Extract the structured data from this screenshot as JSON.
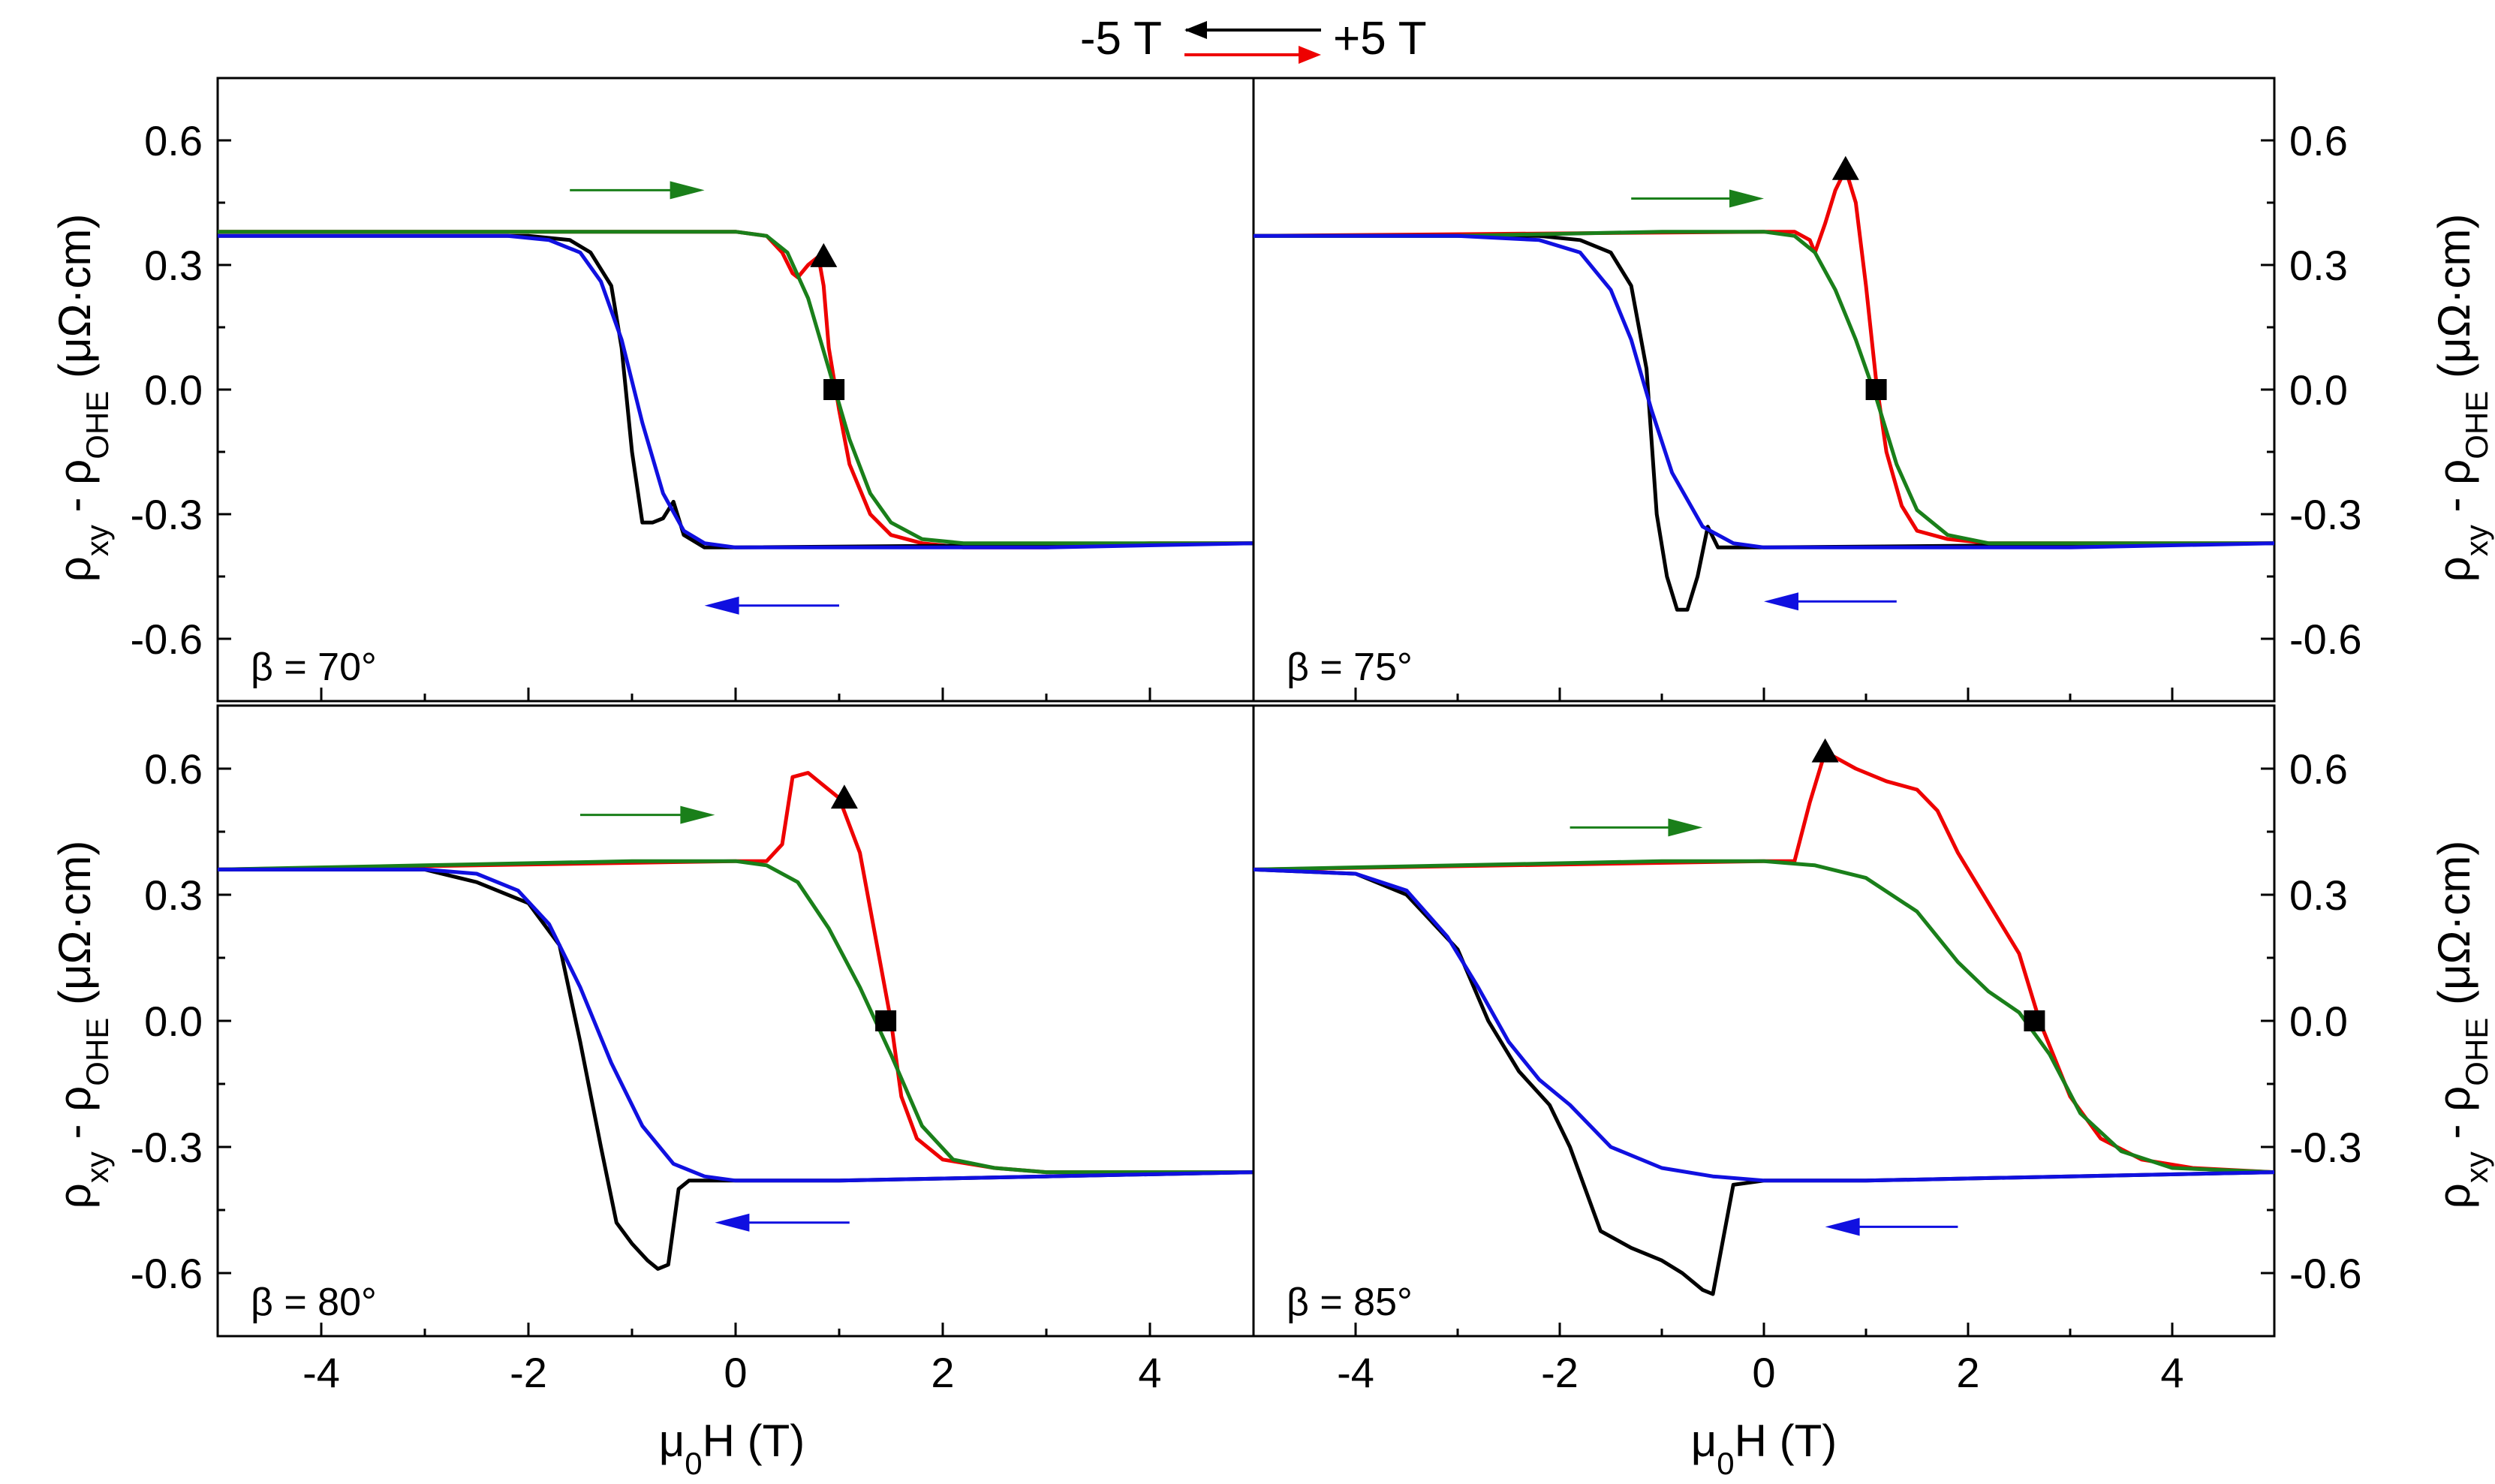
{
  "legend": {
    "left_label": "-5 T",
    "right_label": "+5 T",
    "down_sweep_color": "#000000",
    "up_sweep_color": "#ee0000"
  },
  "colors": {
    "up_sweep": "#ee0000",
    "down_sweep": "#000000",
    "fit_up": "#1a7f1a",
    "fit_down": "#1010e0",
    "arrow_up": "#1a7f1a",
    "arrow_down": "#1010e0"
  },
  "chart_data": [
    {
      "type": "line",
      "panel": "top-left",
      "beta_label": "β = 70°",
      "xlabel": "μ0H (T)",
      "ylabel": "ρxy - ρOHE (μΩ·cm)",
      "xlim": [
        -5,
        5
      ],
      "ylim": [
        -0.75,
        0.75
      ],
      "x_ticks": [
        -4,
        -2,
        0,
        2,
        4
      ],
      "y_ticks": [
        -0.6,
        -0.3,
        0.0,
        0.3,
        0.6
      ],
      "series": [
        {
          "name": "up sweep (-5 T → +5 T)",
          "color": "#ee0000",
          "x": [
            -5,
            0,
            0.3,
            0.45,
            0.55,
            0.6,
            0.7,
            0.8,
            0.85,
            0.9,
            1.0,
            1.1,
            1.3,
            1.5,
            1.8,
            2.2,
            3,
            4,
            5
          ],
          "y": [
            0.38,
            0.38,
            0.37,
            0.33,
            0.28,
            0.27,
            0.3,
            0.32,
            0.25,
            0.1,
            -0.05,
            -0.18,
            -0.3,
            -0.35,
            -0.37,
            -0.38,
            -0.38,
            -0.37,
            -0.37
          ]
        },
        {
          "name": "down sweep (+5 T → -5 T)",
          "color": "#000000",
          "x": [
            5,
            0,
            -0.3,
            -0.5,
            -0.6,
            -0.7,
            -0.8,
            -0.9,
            -1.0,
            -1.1,
            -1.2,
            -1.4,
            -1.6,
            -2,
            -3,
            -4,
            -5
          ],
          "y": [
            -0.37,
            -0.38,
            -0.38,
            -0.35,
            -0.27,
            -0.31,
            -0.32,
            -0.32,
            -0.15,
            0.1,
            0.25,
            0.33,
            0.36,
            0.37,
            0.37,
            0.37,
            0.37
          ]
        },
        {
          "name": "fit up",
          "color": "#1a7f1a",
          "x": [
            -5,
            -3,
            -1,
            0,
            0.3,
            0.5,
            0.7,
            0.9,
            1.1,
            1.3,
            1.5,
            1.8,
            2.2,
            3,
            5
          ],
          "y": [
            0.38,
            0.38,
            0.38,
            0.38,
            0.37,
            0.33,
            0.22,
            0.05,
            -0.12,
            -0.25,
            -0.32,
            -0.36,
            -0.37,
            -0.37,
            -0.37
          ]
        },
        {
          "name": "fit down",
          "color": "#1010e0",
          "x": [
            5,
            3,
            1,
            0,
            -0.3,
            -0.5,
            -0.7,
            -0.9,
            -1.1,
            -1.3,
            -1.5,
            -1.8,
            -2.2,
            -3,
            -5
          ],
          "y": [
            -0.37,
            -0.38,
            -0.38,
            -0.38,
            -0.37,
            -0.34,
            -0.25,
            -0.08,
            0.12,
            0.26,
            0.33,
            0.36,
            0.37,
            0.37,
            0.37
          ]
        }
      ],
      "markers": [
        {
          "shape": "triangle",
          "x": 0.85,
          "y": 0.32
        },
        {
          "shape": "square",
          "x": 0.95,
          "y": 0.0
        }
      ],
      "arrows": [
        {
          "direction": "right",
          "color": "#1a7f1a",
          "x_from": -1.6,
          "x_to": -0.3,
          "y": 0.48
        },
        {
          "direction": "left",
          "color": "#1010e0",
          "x_from": 1.0,
          "x_to": -0.3,
          "y": -0.52
        }
      ]
    },
    {
      "type": "line",
      "panel": "top-right",
      "beta_label": "β = 75°",
      "xlabel": "μ0H (T)",
      "ylabel": "ρxy - ρOHE (μΩ·cm)",
      "xlim": [
        -5,
        5
      ],
      "ylim": [
        -0.75,
        0.75
      ],
      "x_ticks": [
        -4,
        -2,
        0,
        2,
        4
      ],
      "y_ticks": [
        -0.6,
        -0.3,
        0.0,
        0.3,
        0.6
      ],
      "series": [
        {
          "name": "up sweep (-5 T → +5 T)",
          "color": "#ee0000",
          "x": [
            -5,
            0,
            0.3,
            0.45,
            0.5,
            0.6,
            0.7,
            0.8,
            0.9,
            1.0,
            1.1,
            1.2,
            1.35,
            1.5,
            1.8,
            2.2,
            3,
            4,
            5
          ],
          "y": [
            0.37,
            0.38,
            0.38,
            0.36,
            0.33,
            0.4,
            0.48,
            0.53,
            0.45,
            0.25,
            0.02,
            -0.15,
            -0.28,
            -0.34,
            -0.36,
            -0.37,
            -0.37,
            -0.37,
            -0.37
          ]
        },
        {
          "name": "down sweep (+5 T → -5 T)",
          "color": "#000000",
          "x": [
            5,
            0,
            -0.3,
            -0.45,
            -0.55,
            -0.65,
            -0.75,
            -0.85,
            -0.95,
            -1.05,
            -1.15,
            -1.3,
            -1.5,
            -1.8,
            -2.2,
            -3,
            -4,
            -5
          ],
          "y": [
            -0.37,
            -0.38,
            -0.38,
            -0.38,
            -0.33,
            -0.45,
            -0.53,
            -0.53,
            -0.45,
            -0.3,
            0.05,
            0.25,
            0.33,
            0.36,
            0.37,
            0.37,
            0.37,
            0.37
          ]
        },
        {
          "name": "fit up",
          "color": "#1a7f1a",
          "x": [
            -5,
            -3,
            -1,
            0,
            0.3,
            0.5,
            0.7,
            0.9,
            1.1,
            1.3,
            1.5,
            1.8,
            2.2,
            3,
            5
          ],
          "y": [
            0.37,
            0.37,
            0.38,
            0.38,
            0.37,
            0.33,
            0.24,
            0.12,
            -0.02,
            -0.18,
            -0.29,
            -0.35,
            -0.37,
            -0.37,
            -0.37
          ]
        },
        {
          "name": "fit down",
          "color": "#1010e0",
          "x": [
            5,
            3,
            1,
            0,
            -0.3,
            -0.6,
            -0.9,
            -1.1,
            -1.3,
            -1.5,
            -1.8,
            -2.2,
            -3,
            -5
          ],
          "y": [
            -0.37,
            -0.38,
            -0.38,
            -0.38,
            -0.37,
            -0.33,
            -0.2,
            -0.05,
            0.12,
            0.24,
            0.33,
            0.36,
            0.37,
            0.37
          ]
        }
      ],
      "markers": [
        {
          "shape": "triangle",
          "x": 0.8,
          "y": 0.53
        },
        {
          "shape": "square",
          "x": 1.1,
          "y": 0.0
        }
      ],
      "arrows": [
        {
          "direction": "right",
          "color": "#1a7f1a",
          "x_from": -1.3,
          "x_to": 0.0,
          "y": 0.46
        },
        {
          "direction": "left",
          "color": "#1010e0",
          "x_from": 1.3,
          "x_to": 0.0,
          "y": -0.51
        }
      ]
    },
    {
      "type": "line",
      "panel": "bottom-left",
      "beta_label": "β = 80°",
      "xlabel": "μ0H (T)",
      "ylabel": "ρxy - ρOHE (μΩ·cm)",
      "xlim": [
        -5,
        5
      ],
      "ylim": [
        -0.75,
        0.75
      ],
      "x_ticks": [
        -4,
        -2,
        0,
        2,
        4
      ],
      "y_ticks": [
        -0.6,
        -0.3,
        0.0,
        0.3,
        0.6
      ],
      "series": [
        {
          "name": "up sweep (-5 T → +5 T)",
          "color": "#ee0000",
          "x": [
            -5,
            0,
            0.3,
            0.45,
            0.55,
            0.7,
            0.85,
            1.0,
            1.2,
            1.35,
            1.5,
            1.6,
            1.75,
            2.0,
            2.5,
            3,
            4,
            5
          ],
          "y": [
            0.36,
            0.38,
            0.38,
            0.42,
            0.58,
            0.59,
            0.56,
            0.53,
            0.4,
            0.2,
            0.0,
            -0.18,
            -0.28,
            -0.33,
            -0.35,
            -0.36,
            -0.36,
            -0.36
          ]
        },
        {
          "name": "down sweep (+5 T → -5 T)",
          "color": "#000000",
          "x": [
            5,
            3,
            1,
            0,
            -0.3,
            -0.45,
            -0.55,
            -0.65,
            -0.75,
            -0.85,
            -1.0,
            -1.15,
            -1.3,
            -1.5,
            -1.7,
            -2,
            -2.5,
            -3,
            -5
          ],
          "y": [
            -0.36,
            -0.37,
            -0.38,
            -0.38,
            -0.38,
            -0.38,
            -0.4,
            -0.58,
            -0.59,
            -0.57,
            -0.53,
            -0.48,
            -0.3,
            -0.05,
            0.18,
            0.28,
            0.33,
            0.36,
            0.36
          ]
        },
        {
          "name": "fit up",
          "color": "#1a7f1a",
          "x": [
            -5,
            -3,
            -1,
            0,
            0.3,
            0.6,
            0.9,
            1.2,
            1.5,
            1.8,
            2.1,
            2.5,
            3,
            5
          ],
          "y": [
            0.36,
            0.37,
            0.38,
            0.38,
            0.37,
            0.33,
            0.22,
            0.08,
            -0.08,
            -0.25,
            -0.33,
            -0.35,
            -0.36,
            -0.36
          ]
        },
        {
          "name": "fit down",
          "color": "#1010e0",
          "x": [
            5,
            3,
            1,
            0,
            -0.3,
            -0.6,
            -0.9,
            -1.2,
            -1.5,
            -1.8,
            -2.1,
            -2.5,
            -3,
            -5
          ],
          "y": [
            -0.36,
            -0.37,
            -0.38,
            -0.38,
            -0.37,
            -0.34,
            -0.25,
            -0.1,
            0.08,
            0.23,
            0.31,
            0.35,
            0.36,
            0.36
          ]
        }
      ],
      "markers": [
        {
          "shape": "triangle",
          "x": 1.05,
          "y": 0.53
        },
        {
          "shape": "square",
          "x": 1.45,
          "y": 0.0
        }
      ],
      "arrows": [
        {
          "direction": "right",
          "color": "#1a7f1a",
          "x_from": -1.5,
          "x_to": -0.2,
          "y": 0.49
        },
        {
          "direction": "left",
          "color": "#1010e0",
          "x_from": 1.1,
          "x_to": -0.2,
          "y": -0.48
        }
      ]
    },
    {
      "type": "line",
      "panel": "bottom-right",
      "beta_label": "β = 85°",
      "xlabel": "μ0H (T)",
      "ylabel": "ρxy - ρOHE (μΩ·cm)",
      "xlim": [
        -5,
        5
      ],
      "ylim": [
        -0.75,
        0.75
      ],
      "x_ticks": [
        -4,
        -2,
        0,
        2,
        4
      ],
      "y_ticks": [
        -0.6,
        -0.3,
        0.0,
        0.3,
        0.6
      ],
      "series": [
        {
          "name": "up sweep (-5 T → +5 T)",
          "color": "#ee0000",
          "x": [
            -5,
            0,
            0.3,
            0.45,
            0.6,
            0.9,
            1.2,
            1.5,
            1.7,
            1.9,
            2.2,
            2.5,
            2.7,
            3.0,
            3.3,
            3.7,
            4.2,
            5
          ],
          "y": [
            0.36,
            0.38,
            0.38,
            0.52,
            0.64,
            0.6,
            0.57,
            0.55,
            0.5,
            0.4,
            0.28,
            0.16,
            0.0,
            -0.18,
            -0.28,
            -0.33,
            -0.35,
            -0.36
          ]
        },
        {
          "name": "down sweep (+5 T → -5 T)",
          "color": "#000000",
          "x": [
            5,
            3,
            1,
            0,
            -0.3,
            -0.5,
            -0.6,
            -0.8,
            -1.0,
            -1.3,
            -1.6,
            -1.9,
            -2.1,
            -2.4,
            -2.7,
            -3.0,
            -3.5,
            -4,
            -5
          ],
          "y": [
            -0.36,
            -0.37,
            -0.38,
            -0.38,
            -0.39,
            -0.65,
            -0.64,
            -0.6,
            -0.57,
            -0.54,
            -0.5,
            -0.3,
            -0.2,
            -0.12,
            0.0,
            0.17,
            0.3,
            0.35,
            0.36
          ]
        },
        {
          "name": "fit up",
          "color": "#1a7f1a",
          "x": [
            -5,
            -3,
            -1,
            0,
            0.5,
            1.0,
            1.5,
            1.9,
            2.2,
            2.5,
            2.8,
            3.1,
            3.5,
            4.0,
            5
          ],
          "y": [
            0.36,
            0.37,
            0.38,
            0.38,
            0.37,
            0.34,
            0.26,
            0.14,
            0.07,
            0.02,
            -0.08,
            -0.22,
            -0.31,
            -0.35,
            -0.36
          ]
        },
        {
          "name": "fit down",
          "color": "#1010e0",
          "x": [
            5,
            3,
            1,
            0,
            -0.5,
            -1.0,
            -1.5,
            -1.9,
            -2.2,
            -2.5,
            -2.8,
            -3.1,
            -3.5,
            -4.0,
            -5
          ],
          "y": [
            -0.36,
            -0.37,
            -0.38,
            -0.38,
            -0.37,
            -0.35,
            -0.3,
            -0.2,
            -0.14,
            -0.05,
            0.08,
            0.2,
            0.31,
            0.35,
            0.36
          ]
        }
      ],
      "markers": [
        {
          "shape": "triangle",
          "x": 0.6,
          "y": 0.64
        },
        {
          "shape": "square",
          "x": 2.65,
          "y": 0.0
        }
      ],
      "arrows": [
        {
          "direction": "right",
          "color": "#1a7f1a",
          "x_from": -1.9,
          "x_to": -0.6,
          "y": 0.46
        },
        {
          "direction": "left",
          "color": "#1010e0",
          "x_from": 1.9,
          "x_to": 0.6,
          "y": -0.49
        }
      ]
    }
  ]
}
